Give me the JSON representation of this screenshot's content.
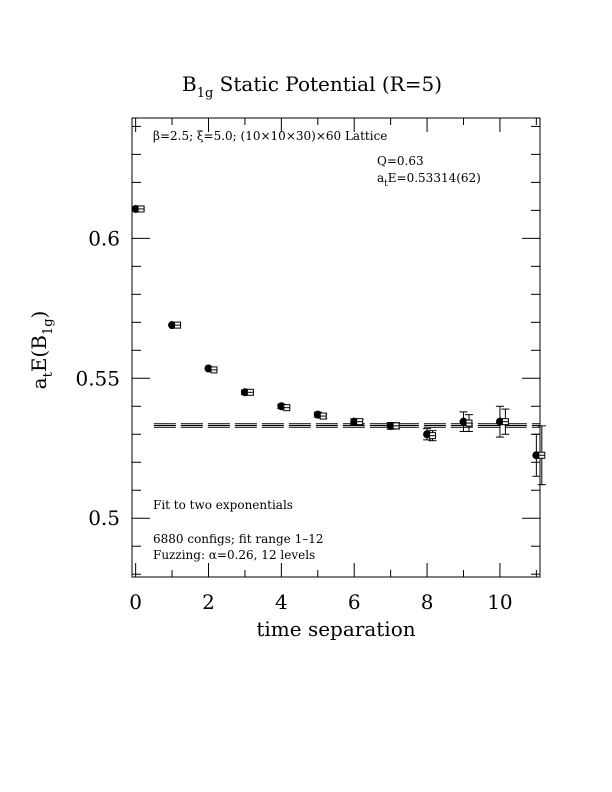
{
  "chart_data": {
    "type": "scatter",
    "title": {
      "main": "B",
      "sub": "1g",
      "rest": " Static Potential (R=5)"
    },
    "xlabel": "time separation",
    "ylabel": {
      "a": "a",
      "a_sub": "t",
      "mid": "E(B",
      "b_sub": "1g",
      "end": ")"
    },
    "xlim": [
      -0.1,
      11.1
    ],
    "ylim": [
      0.479,
      0.643
    ],
    "xticks": [
      0,
      2,
      4,
      6,
      8,
      10
    ],
    "xtick_labels": [
      "0",
      "2",
      "4",
      "6",
      "8",
      "10"
    ],
    "yticks": [
      0.5,
      0.55,
      0.6
    ],
    "ytick_labels": [
      "0.5",
      "0.55",
      "0.6"
    ],
    "annotations": {
      "lattice": "β=2.5; ξ=5.0; (10×10×30)×60 Lattice",
      "q": "Q=0.63",
      "ate_a": "a",
      "ate_sub": "t",
      "ate_rest": "E=0.53314(62)",
      "fit_method": "Fit to two exponentials",
      "configs": "6880 configs; fit range 1–12",
      "fuzzing": "Fuzzing: α=0.26, 12 levels"
    },
    "series": [
      {
        "marker": "filled-circle",
        "x": [
          0,
          1,
          2,
          3,
          4,
          5,
          6,
          7,
          8,
          9,
          10,
          11
        ],
        "y": [
          0.6105,
          0.569,
          0.5535,
          0.545,
          0.54,
          0.537,
          0.5345,
          0.533,
          0.53,
          0.5345,
          0.5345,
          0.5225
        ],
        "err": [
          0.0005,
          0.0006,
          0.0007,
          0.0008,
          0.0008,
          0.0009,
          0.001,
          0.0012,
          0.002,
          0.0035,
          0.0055,
          0.0075
        ]
      },
      {
        "marker": "open-square",
        "x": [
          0.15,
          1.15,
          2.15,
          3.15,
          4.15,
          5.15,
          6.15,
          7.15,
          8.15,
          9.15,
          10.15,
          11.15
        ],
        "y": [
          0.6105,
          0.569,
          0.553,
          0.545,
          0.5395,
          0.5365,
          0.5345,
          0.533,
          0.5295,
          0.534,
          0.5345,
          0.5225
        ],
        "err": [
          0.0004,
          0.0005,
          0.0006,
          0.0006,
          0.0007,
          0.0008,
          0.0009,
          0.0011,
          0.0018,
          0.003,
          0.0045,
          0.0105
        ]
      }
    ],
    "fit": {
      "value": 0.53314,
      "error": 0.00062,
      "x_range": [
        0.5,
        11.1
      ]
    },
    "grid": false
  }
}
